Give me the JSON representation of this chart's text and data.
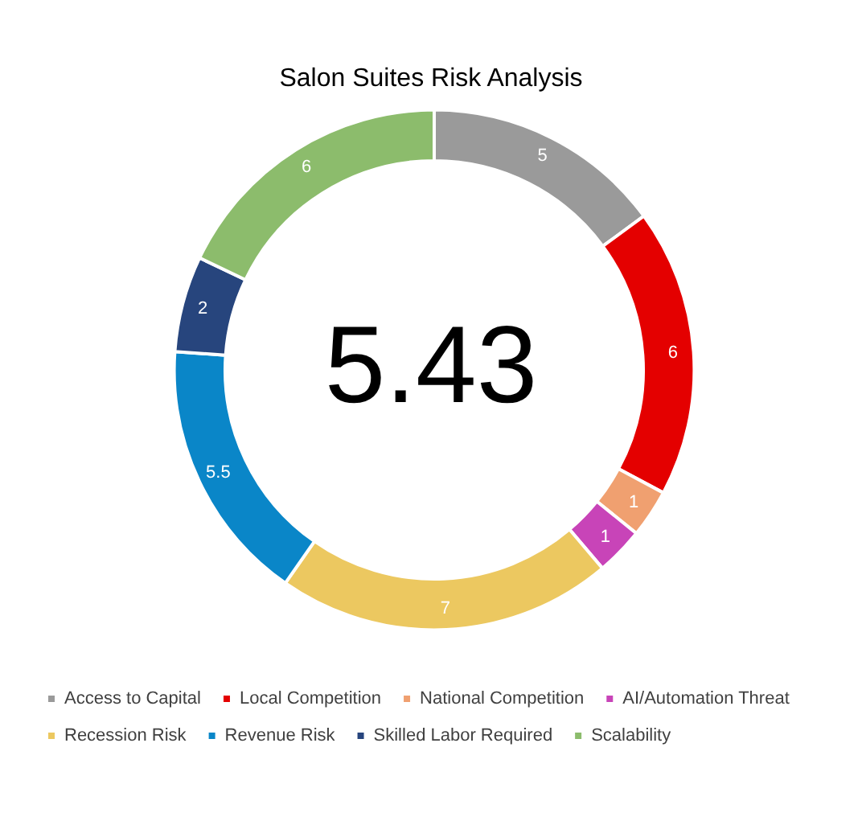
{
  "chart_data": {
    "type": "donut",
    "title": "Salon Suites Risk Analysis",
    "categories": [
      "Access to Capital",
      "Local Competition",
      "National Competition",
      "AI/Automation Threat",
      "Recession Risk",
      "Revenue Risk",
      "Skilled Labor Required",
      "Scalability"
    ],
    "values": [
      5,
      6,
      1,
      1,
      7,
      5.5,
      2,
      6
    ],
    "colors": [
      "#9a9a9a",
      "#e40000",
      "#f0a070",
      "#c844b8",
      "#ecc860",
      "#0a86c8",
      "#27457d",
      "#8cbc6c"
    ],
    "data_labels": true,
    "legend": "bottom",
    "annotations": [
      "5.43"
    ]
  }
}
